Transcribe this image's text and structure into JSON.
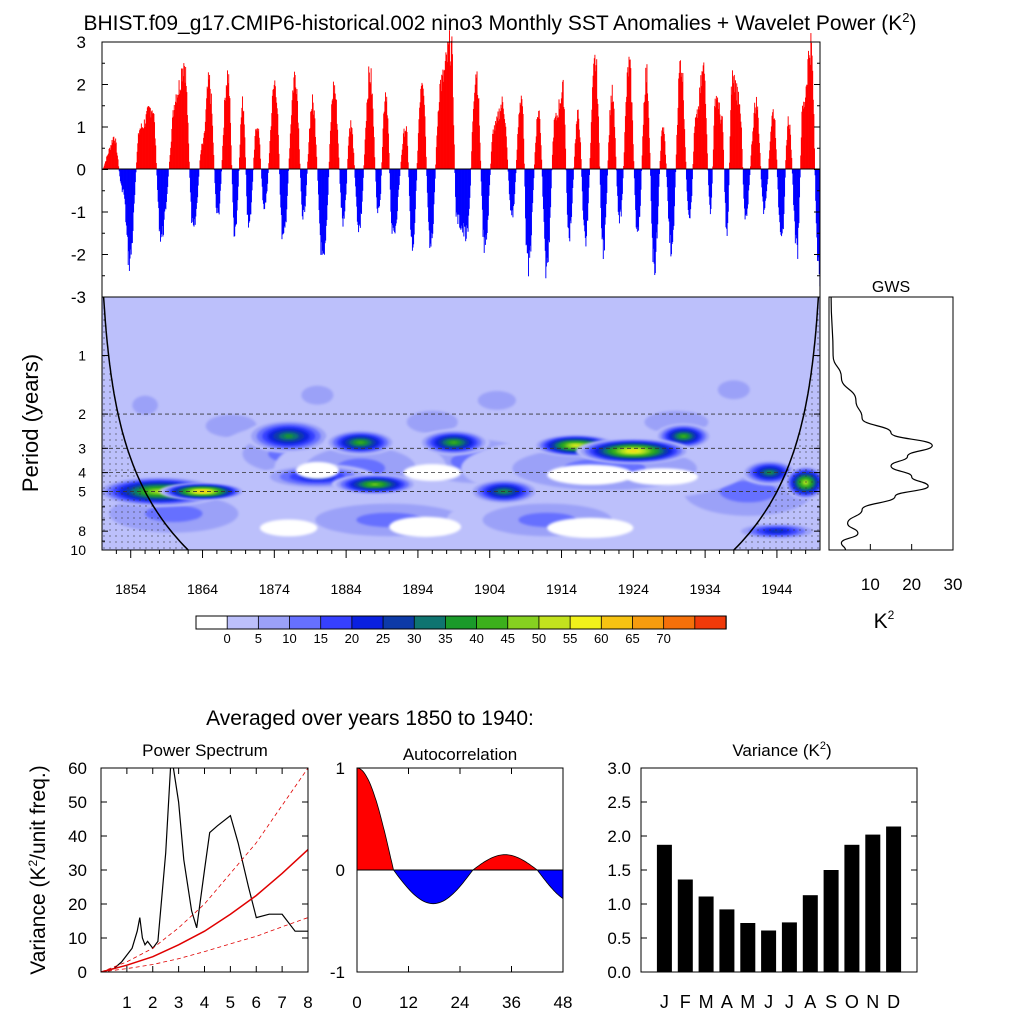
{
  "title": {
    "main": "BHIST.f09_g17.CMIP6-historical.002 nino3 Monthly SST Anomalies + Wavelet Power (K",
    "sup": "2",
    "end": ")"
  },
  "colors": {
    "positive": "#ff0000",
    "negative": "#0000ff",
    "coi_line": "#000000",
    "contour_palette": [
      "#ffffff",
      "#bcc0fb",
      "#9ba1f8",
      "#6670ff",
      "#3640ff",
      "#0a20e0",
      "#0d3aa8",
      "#0f7470",
      "#1a9a2a",
      "#3cb01c",
      "#86d120",
      "#c2e21e",
      "#f2f21a",
      "#f6c312",
      "#f69c0e",
      "#f5700a",
      "#f03a0a",
      "#ff0000"
    ]
  },
  "chart_data": [
    {
      "id": "sst-anomaly",
      "type": "bar",
      "ylim": [
        -3,
        3
      ],
      "yticks": [
        "3",
        "2",
        "1",
        "0",
        "-1",
        "-2",
        "-3"
      ],
      "x_range": [
        1850,
        1950
      ],
      "shading": {
        "above_zero": "red",
        "below_zero": "blue"
      },
      "peaks": [
        {
          "x": 1851.6,
          "y": 0.8
        },
        {
          "x": 1852.9,
          "y": -0.5
        },
        {
          "x": 1853.8,
          "y": -2.2
        },
        {
          "x": 1855.3,
          "y": 1.0
        },
        {
          "x": 1857.0,
          "y": 1.5
        },
        {
          "x": 1858.2,
          "y": -1.6
        },
        {
          "x": 1860.5,
          "y": 1.9
        },
        {
          "x": 1861.4,
          "y": 2.6
        },
        {
          "x": 1862.7,
          "y": -1.5
        },
        {
          "x": 1864.0,
          "y": 0.6
        },
        {
          "x": 1864.9,
          "y": 2.1
        },
        {
          "x": 1866.1,
          "y": -1.1
        },
        {
          "x": 1867.5,
          "y": 2.3
        },
        {
          "x": 1868.5,
          "y": -1.6
        },
        {
          "x": 1869.6,
          "y": 1.6
        },
        {
          "x": 1870.4,
          "y": -1.4
        },
        {
          "x": 1871.6,
          "y": 1.1
        },
        {
          "x": 1872.6,
          "y": -0.9
        },
        {
          "x": 1874.1,
          "y": 2.1
        },
        {
          "x": 1875.2,
          "y": -1.7
        },
        {
          "x": 1876.9,
          "y": 2.3
        },
        {
          "x": 1878.0,
          "y": -1.1
        },
        {
          "x": 1879.3,
          "y": 1.6
        },
        {
          "x": 1880.8,
          "y": -2.3
        },
        {
          "x": 1882.3,
          "y": 2.0
        },
        {
          "x": 1883.6,
          "y": -1.3
        },
        {
          "x": 1884.6,
          "y": 1.1
        },
        {
          "x": 1885.8,
          "y": -1.4
        },
        {
          "x": 1887.3,
          "y": 2.3
        },
        {
          "x": 1888.5,
          "y": -1.1
        },
        {
          "x": 1889.5,
          "y": 1.9
        },
        {
          "x": 1890.5,
          "y": -1.6
        },
        {
          "x": 1892.3,
          "y": 1.0
        },
        {
          "x": 1893.2,
          "y": -1.8
        },
        {
          "x": 1894.6,
          "y": 2.3
        },
        {
          "x": 1895.7,
          "y": -1.9
        },
        {
          "x": 1897.2,
          "y": 2.1
        },
        {
          "x": 1898.6,
          "y": 3.0
        },
        {
          "x": 1899.4,
          "y": -1.2
        },
        {
          "x": 1900.8,
          "y": -1.6
        },
        {
          "x": 1902.1,
          "y": 2.4
        },
        {
          "x": 1903.3,
          "y": -1.9
        },
        {
          "x": 1904.6,
          "y": 1.0
        },
        {
          "x": 1905.8,
          "y": 1.6
        },
        {
          "x": 1907.1,
          "y": -1.1
        },
        {
          "x": 1908.4,
          "y": 1.8
        },
        {
          "x": 1909.3,
          "y": -2.4
        },
        {
          "x": 1910.8,
          "y": 1.4
        },
        {
          "x": 1911.9,
          "y": -2.4
        },
        {
          "x": 1913.1,
          "y": 1.2
        },
        {
          "x": 1914.2,
          "y": 1.9
        },
        {
          "x": 1915.0,
          "y": -1.6
        },
        {
          "x": 1916.3,
          "y": 1.3
        },
        {
          "x": 1917.3,
          "y": -1.7
        },
        {
          "x": 1918.7,
          "y": 2.6
        },
        {
          "x": 1919.8,
          "y": -1.9
        },
        {
          "x": 1921.0,
          "y": 1.8
        },
        {
          "x": 1922.1,
          "y": -1.2
        },
        {
          "x": 1923.4,
          "y": 2.5
        },
        {
          "x": 1924.6,
          "y": -1.6
        },
        {
          "x": 1925.8,
          "y": 2.3
        },
        {
          "x": 1926.9,
          "y": -2.3
        },
        {
          "x": 1928.1,
          "y": 1.0
        },
        {
          "x": 1929.3,
          "y": -1.9
        },
        {
          "x": 1930.6,
          "y": 2.6
        },
        {
          "x": 1931.8,
          "y": -1.3
        },
        {
          "x": 1932.7,
          "y": 1.2
        },
        {
          "x": 1933.8,
          "y": 2.4
        },
        {
          "x": 1934.7,
          "y": -1.0
        },
        {
          "x": 1935.5,
          "y": 1.8
        },
        {
          "x": 1936.3,
          "y": 1.2
        },
        {
          "x": 1937.0,
          "y": -1.5
        },
        {
          "x": 1937.8,
          "y": 2.2
        },
        {
          "x": 1938.7,
          "y": 1.8
        },
        {
          "x": 1939.6,
          "y": -1.1
        },
        {
          "x": 1941.1,
          "y": 1.6
        },
        {
          "x": 1942.2,
          "y": -1.0
        },
        {
          "x": 1943.5,
          "y": 1.4
        },
        {
          "x": 1944.6,
          "y": -1.8
        },
        {
          "x": 1945.6,
          "y": 1.2
        },
        {
          "x": 1946.8,
          "y": -2.0
        },
        {
          "x": 1947.6,
          "y": 1.5
        },
        {
          "x": 1948.7,
          "y": 3.0
        },
        {
          "x": 1949.8,
          "y": -2.6
        }
      ]
    },
    {
      "id": "wavelet-power",
      "type": "heatmap",
      "ylabel": "Period (years)",
      "yticks": [
        1,
        2,
        3,
        4,
        5,
        8,
        10
      ],
      "xticks": [
        "1854",
        "1864",
        "1874",
        "1884",
        "1894",
        "1904",
        "1914",
        "1924",
        "1934",
        "1944"
      ],
      "x_range": [
        1850,
        1950
      ],
      "y_range_period": [
        0.5,
        10
      ],
      "dashed_periods": [
        2,
        3,
        4,
        5
      ],
      "blobs": [
        {
          "x": 1858,
          "p": 5.0,
          "w": 9,
          "h": 0.18,
          "v": 45
        },
        {
          "x": 1864,
          "p": 5.0,
          "w": 6,
          "h": 0.1,
          "v": 60
        },
        {
          "x": 1876,
          "p": 2.6,
          "w": 6,
          "h": 0.2,
          "v": 32
        },
        {
          "x": 1886,
          "p": 2.8,
          "w": 5,
          "h": 0.15,
          "v": 35
        },
        {
          "x": 1888,
          "p": 4.6,
          "w": 6,
          "h": 0.12,
          "v": 40
        },
        {
          "x": 1880,
          "p": 4.2,
          "w": 8,
          "h": 0.15,
          "v": 20
        },
        {
          "x": 1899,
          "p": 2.8,
          "w": 5,
          "h": 0.15,
          "v": 35
        },
        {
          "x": 1906,
          "p": 5.0,
          "w": 5,
          "h": 0.15,
          "v": 30
        },
        {
          "x": 1916,
          "p": 2.9,
          "w": 6,
          "h": 0.13,
          "v": 52
        },
        {
          "x": 1924,
          "p": 3.1,
          "w": 8,
          "h": 0.15,
          "v": 56
        },
        {
          "x": 1931,
          "p": 2.6,
          "w": 4,
          "h": 0.15,
          "v": 38
        },
        {
          "x": 1943,
          "p": 4.0,
          "w": 4,
          "h": 0.15,
          "v": 30
        },
        {
          "x": 1948,
          "p": 4.5,
          "w": 3,
          "h": 0.2,
          "v": 45
        },
        {
          "x": 1944,
          "p": 8.0,
          "w": 6,
          "h": 0.1,
          "v": 22
        }
      ],
      "colorbar": {
        "levels": [
          "0",
          "5",
          "10",
          "15",
          "20",
          "25",
          "30",
          "35",
          "40",
          "45",
          "50",
          "55",
          "60",
          "65",
          "70"
        ]
      }
    },
    {
      "id": "gws",
      "type": "line",
      "title": "GWS",
      "xlabel": "K",
      "xlabel_sup": "2",
      "xticks": [
        "10",
        "20",
        "30"
      ],
      "xlim": [
        0,
        30
      ],
      "points": [
        {
          "period": 0.5,
          "value": 0.5
        },
        {
          "period": 1.0,
          "value": 1.0
        },
        {
          "period": 1.3,
          "value": 3.0
        },
        {
          "period": 1.7,
          "value": 6.5
        },
        {
          "period": 2.1,
          "value": 8.0
        },
        {
          "period": 2.5,
          "value": 15.0
        },
        {
          "period": 2.9,
          "value": 25.0
        },
        {
          "period": 3.3,
          "value": 19.0
        },
        {
          "period": 3.7,
          "value": 15.0
        },
        {
          "period": 4.2,
          "value": 20.0
        },
        {
          "period": 4.7,
          "value": 24.0
        },
        {
          "period": 5.3,
          "value": 16.0
        },
        {
          "period": 6.2,
          "value": 8.0
        },
        {
          "period": 7.3,
          "value": 4.5
        },
        {
          "period": 8.2,
          "value": 7.0
        },
        {
          "period": 9.2,
          "value": 3.0
        },
        {
          "period": 10.0,
          "value": 4.0
        }
      ]
    },
    {
      "id": "power-spectrum",
      "type": "line",
      "heading": "Averaged over years 1850 to 1940:",
      "title": "Power Spectrum",
      "ylabel": "Variance (K",
      "ylabel_sup": "2",
      "ylabel_end": "/unit freq.)",
      "xlim": [
        0,
        8
      ],
      "ylim": [
        0,
        60
      ],
      "xticks": [
        "1",
        "2",
        "3",
        "4",
        "5",
        "6",
        "7",
        "8"
      ],
      "yticks": [
        "0",
        "10",
        "20",
        "30",
        "40",
        "50",
        "60"
      ],
      "series": [
        {
          "x": [
            0,
            0.5,
            0.8,
            1.0,
            1.2,
            1.4,
            1.5,
            1.6,
            1.7,
            1.8,
            2.0,
            2.2,
            2.5,
            2.7,
            2.8,
            3.0,
            3.2,
            3.5,
            3.7,
            4.0,
            4.2,
            4.5,
            5.0,
            5.3,
            5.7,
            6.0,
            6.5,
            7.0,
            7.5,
            8.0
          ],
          "y": [
            0,
            1,
            3,
            5,
            7,
            12,
            16,
            10,
            8,
            9,
            7,
            9,
            35,
            62,
            60,
            50,
            33,
            18,
            13,
            30,
            41,
            43,
            46,
            38,
            25,
            16,
            17,
            17,
            12,
            12
          ]
        },
        {
          "x": [
            0,
            1,
            2,
            3,
            4,
            5,
            6,
            7,
            8
          ],
          "y": [
            0,
            2,
            4.5,
            8,
            12,
            17,
            22.5,
            29,
            36
          ]
        },
        {
          "x": [
            0,
            1,
            2,
            3,
            4,
            5,
            6,
            7,
            8
          ],
          "y": [
            0,
            3,
            7,
            13,
            20,
            29,
            38,
            49,
            60
          ]
        },
        {
          "x": [
            0,
            1,
            2,
            3,
            4,
            5,
            6,
            7,
            8
          ],
          "y": [
            0,
            1,
            2.2,
            3.9,
            6,
            8.3,
            10.5,
            13.3,
            16
          ]
        }
      ]
    },
    {
      "id": "autocorrelation",
      "type": "area",
      "title": "Autocorrelation",
      "xlim": [
        0,
        48
      ],
      "ylim": [
        -1,
        1
      ],
      "xticks": [
        "0",
        "12",
        "24",
        "36",
        "48"
      ],
      "yticks": [
        "1",
        "0",
        "-1"
      ],
      "zero_crossings": [
        8.5,
        27,
        42
      ],
      "min": {
        "x": 18,
        "y": -0.33
      },
      "max": {
        "x": 35,
        "y": 0.15
      }
    },
    {
      "id": "variance",
      "type": "bar",
      "title": "Variance (K",
      "title_sup": "2",
      "title_end": ")",
      "categories": [
        "J",
        "F",
        "M",
        "A",
        "M",
        "J",
        "J",
        "A",
        "S",
        "O",
        "N",
        "D"
      ],
      "values": [
        1.87,
        1.36,
        1.11,
        0.92,
        0.72,
        0.61,
        0.73,
        1.13,
        1.5,
        1.87,
        2.02,
        2.14
      ],
      "ylim": [
        0,
        3
      ],
      "yticks": [
        "0.0",
        "0.5",
        "1.0",
        "1.5",
        "2.0",
        "2.5",
        "3.0"
      ]
    }
  ]
}
